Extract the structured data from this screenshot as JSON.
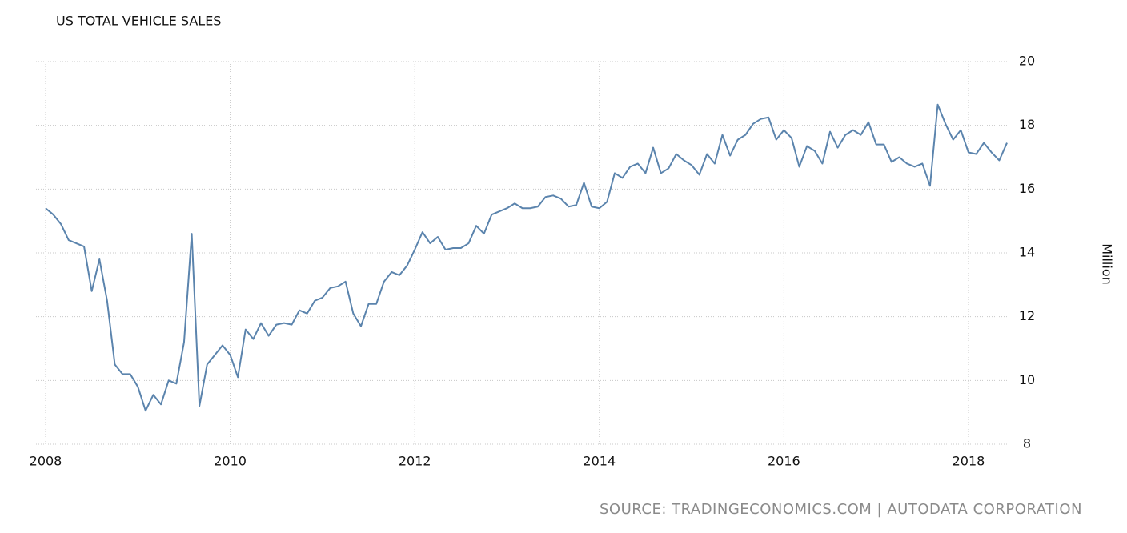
{
  "chart_data": {
    "type": "line",
    "title": "US TOTAL VEHICLE SALES",
    "y_label": "Million",
    "source": "SOURCE: TRADINGECONOMICS.COM | AUTODATA CORPORATION",
    "categories": [
      "2008",
      null,
      null,
      null,
      null,
      null,
      null,
      null,
      null,
      null,
      null,
      null,
      null,
      null,
      null,
      null,
      null,
      null,
      null,
      null,
      null,
      null,
      null,
      null,
      "2010",
      null,
      null,
      null,
      null,
      null,
      null,
      null,
      null,
      null,
      null,
      null,
      null,
      null,
      null,
      null,
      null,
      null,
      null,
      null,
      null,
      null,
      null,
      null,
      "2012",
      null,
      null,
      null,
      null,
      null,
      null,
      null,
      null,
      null,
      null,
      null,
      null,
      null,
      null,
      null,
      null,
      null,
      null,
      null,
      null,
      null,
      null,
      null,
      "2014",
      null,
      null,
      null,
      null,
      null,
      null,
      null,
      null,
      null,
      null,
      null,
      null,
      null,
      null,
      null,
      null,
      null,
      null,
      null,
      null,
      null,
      null,
      null,
      "2016",
      null,
      null,
      null,
      null,
      null,
      null,
      null,
      null,
      null,
      null,
      null,
      null,
      null,
      null,
      null,
      null,
      null,
      null,
      null,
      null,
      null,
      null,
      null,
      "2018",
      null,
      null,
      null,
      null,
      null
    ],
    "series": [
      {
        "name": "US Total Vehicle Sales",
        "color": "#5b84ad",
        "values": [
          15.4,
          15.2,
          14.9,
          14.4,
          14.3,
          14.2,
          12.8,
          13.8,
          12.5,
          10.5,
          10.2,
          10.2,
          9.8,
          9.05,
          9.55,
          9.25,
          10.0,
          9.9,
          11.2,
          14.6,
          9.2,
          10.5,
          10.8,
          11.1,
          10.8,
          10.1,
          11.6,
          11.3,
          11.8,
          11.4,
          11.75,
          11.8,
          11.75,
          12.2,
          12.1,
          12.5,
          12.6,
          12.9,
          12.95,
          13.1,
          12.1,
          11.7,
          12.4,
          12.4,
          13.1,
          13.4,
          13.3,
          13.6,
          14.1,
          14.65,
          14.3,
          14.5,
          14.1,
          14.15,
          14.15,
          14.3,
          14.85,
          14.6,
          15.2,
          15.3,
          15.4,
          15.55,
          15.4,
          15.4,
          15.45,
          15.75,
          15.8,
          15.7,
          15.45,
          15.5,
          16.2,
          15.45,
          15.4,
          15.6,
          16.5,
          16.35,
          16.7,
          16.8,
          16.5,
          17.3,
          16.5,
          16.65,
          17.1,
          16.9,
          16.75,
          16.45,
          17.1,
          16.8,
          17.7,
          17.05,
          17.55,
          17.7,
          18.05,
          18.2,
          18.25,
          17.55,
          17.85,
          17.6,
          16.7,
          17.35,
          17.2,
          16.8,
          17.8,
          17.3,
          17.7,
          17.85,
          17.7,
          18.1,
          17.4,
          17.4,
          16.85,
          17.0,
          16.8,
          16.7,
          16.8,
          16.1,
          18.65,
          18.05,
          17.55,
          17.85,
          17.15,
          17.1,
          17.45,
          17.15,
          16.9,
          17.45
        ]
      }
    ],
    "ylim": [
      8,
      20
    ],
    "yticks": [
      8,
      10,
      12,
      14,
      16,
      18,
      20
    ],
    "grid": true
  }
}
